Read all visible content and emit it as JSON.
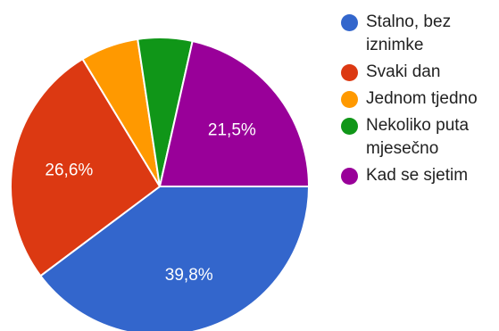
{
  "chart_data": {
    "type": "pie",
    "categories": [
      "Stalno, bez iznimke",
      "Svaki dan",
      "Jednom tjedno",
      "Nekoliko puta mjesečno",
      "Kad se sjetim"
    ],
    "values": [
      39.8,
      26.6,
      6.3,
      5.9,
      21.5
    ],
    "colors": [
      "#3366cc",
      "#dc3912",
      "#ff9900",
      "#109618",
      "#990099"
    ],
    "data_labels": [
      "39,8%",
      "26,6%",
      "",
      "",
      "21,5%"
    ],
    "legend_position": "right"
  },
  "legend": {
    "items": [
      {
        "label": "Stalno, bez iznimke",
        "color": "#3366cc"
      },
      {
        "label": "Svaki dan",
        "color": "#dc3912"
      },
      {
        "label": "Jednom tjedno",
        "color": "#ff9900"
      },
      {
        "label": "Nekoliko puta mjesečno",
        "color": "#109618"
      },
      {
        "label": "Kad se sjetim",
        "color": "#990099"
      }
    ]
  }
}
